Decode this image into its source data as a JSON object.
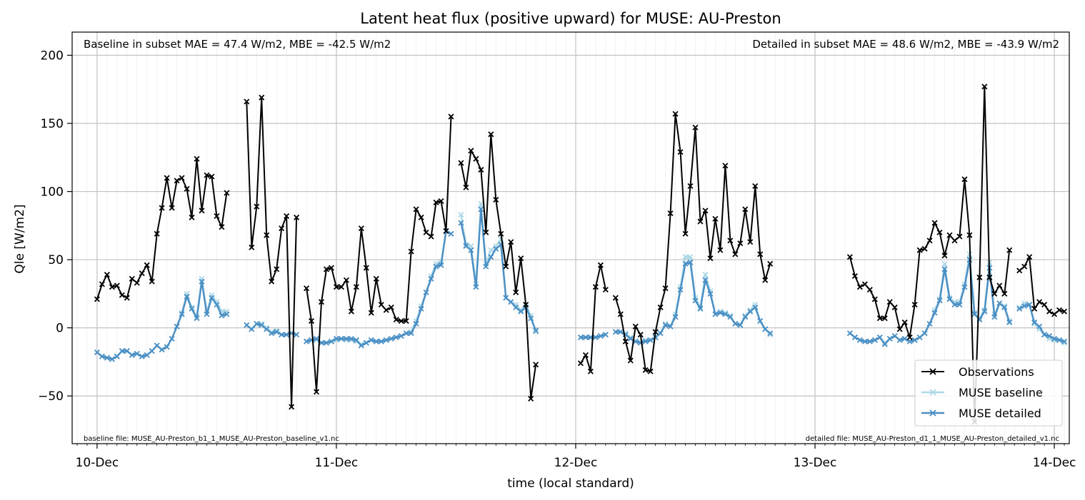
{
  "chart_data": {
    "type": "line",
    "title": "Latent heat flux (positive upward) for MUSE: AU-Preston",
    "xlabel": "time (local standard)",
    "ylabel": "Qle [W/m2]",
    "ylim": [
      -85,
      217
    ],
    "xlim": [
      "2013-12-09T21:30",
      "2013-12-14T01:30"
    ],
    "x_interval_minutes": 30,
    "x_start": "2013-12-10T00:00",
    "xticks": [
      {
        "value": "2013-12-10T00:00",
        "label": "10-Dec"
      },
      {
        "value": "2013-12-11T00:00",
        "label": "11-Dec"
      },
      {
        "value": "2013-12-12T00:00",
        "label": "12-Dec"
      },
      {
        "value": "2013-12-13T00:00",
        "label": "13-Dec"
      },
      {
        "value": "2013-12-14T00:00",
        "label": "14-Dec"
      }
    ],
    "yticks": [
      -50,
      0,
      50,
      100,
      150,
      200
    ],
    "grid": true,
    "legend_position": "bottom-right",
    "annotations": {
      "baseline_stats": "Baseline in subset MAE = 47.4 W/m2, MBE = -42.5 W/m2",
      "detailed_stats": "Detailed in subset MAE = 48.6 W/m2, MBE = -43.9 W/m2",
      "baseline_file": "baseline file: MUSE_AU-Preston_b1_1_MUSE_AU-Preston_baseline_v1.nc",
      "detailed_file": "detailed file: MUSE_AU-Preston_d1_1_MUSE_AU-Preston_detailed_v1.nc"
    },
    "series": [
      {
        "name": "Observations",
        "color": "#000000",
        "values": [
          21,
          32,
          39,
          30,
          31,
          24,
          22,
          36,
          33,
          40,
          46,
          34,
          69,
          88,
          110,
          88,
          108,
          110,
          102,
          81,
          124,
          86,
          112,
          111,
          82,
          74,
          99,
          null,
          null,
          null,
          166,
          59,
          89,
          169,
          68,
          34,
          43,
          73,
          82,
          -58,
          81,
          null,
          29,
          5,
          -47,
          19,
          43,
          44,
          30,
          30,
          35,
          12,
          30,
          73,
          44,
          11,
          36,
          17,
          13,
          15,
          6,
          5,
          5,
          56,
          87,
          81,
          70,
          67,
          92,
          93,
          71,
          155,
          null,
          121,
          103,
          130,
          124,
          116,
          70,
          142,
          94,
          69,
          45,
          63,
          26,
          51,
          17,
          -52,
          -27,
          null,
          null,
          null,
          null,
          null,
          null,
          null,
          null,
          -26,
          -20,
          -32,
          30,
          46,
          28,
          null,
          22,
          10,
          -10,
          -24,
          1,
          -5,
          -31,
          -32,
          -3,
          15,
          29,
          84,
          157,
          129,
          69,
          104,
          147,
          78,
          86,
          51,
          80,
          57,
          119,
          64,
          54,
          62,
          87,
          63,
          104,
          54,
          35,
          47,
          null,
          null,
          null,
          null,
          null,
          null,
          null,
          null,
          null,
          null,
          null,
          null,
          null,
          null,
          null,
          52,
          38,
          30,
          32,
          28,
          21,
          7,
          7,
          19,
          15,
          -1,
          4,
          -7,
          17,
          57,
          58,
          64,
          77,
          70,
          53,
          68,
          64,
          67,
          109,
          68,
          -69,
          37,
          177,
          37,
          25,
          31,
          25,
          57,
          null,
          42,
          45,
          52,
          14,
          19,
          17,
          12,
          10,
          13,
          12
        ]
      },
      {
        "name": "MUSE baseline",
        "color": "#add8e6",
        "values": [
          -18,
          -21,
          -22,
          -23,
          -21,
          -17,
          -17,
          -20,
          -19,
          -21,
          -20,
          -17,
          -13,
          -16,
          -14,
          -8,
          1,
          11,
          25,
          15,
          8,
          36,
          12,
          24,
          19,
          12,
          12,
          null,
          null,
          null,
          2,
          -1,
          3,
          3,
          0,
          -3,
          -2,
          -5,
          -5,
          -4,
          -5,
          null,
          -10,
          -9,
          -9,
          -11,
          -11,
          -10,
          -9,
          -8,
          -9,
          -9,
          -10,
          -12,
          -11,
          -9,
          -10,
          -10,
          -9,
          -8,
          -7,
          -6,
          -4,
          -3,
          5,
          16,
          26,
          38,
          47,
          48,
          71,
          69,
          null,
          83,
          61,
          60,
          32,
          91,
          47,
          57,
          60,
          65,
          22,
          19,
          17,
          13,
          17,
          9,
          -3,
          null,
          null,
          null,
          null,
          null,
          null,
          null,
          null,
          -7,
          -7,
          -7,
          -7,
          -6,
          -5,
          null,
          -3,
          -3,
          -4,
          -7,
          -10,
          -11,
          -9,
          -9,
          -7,
          -4,
          3,
          1,
          10,
          30,
          52,
          52,
          22,
          15,
          39,
          27,
          10,
          12,
          11,
          9,
          3,
          2,
          9,
          13,
          17,
          5,
          -1,
          -5,
          null,
          null,
          null,
          null,
          null,
          null,
          null,
          null,
          null,
          null,
          null,
          null,
          null,
          null,
          null,
          -4,
          -7,
          -9,
          -10,
          -10,
          -9,
          -7,
          -11,
          -8,
          -6,
          -9,
          -8,
          -10,
          -9,
          -7,
          -4,
          3,
          13,
          21,
          47,
          22,
          19,
          19,
          32,
          54,
          11,
          7,
          13,
          48,
          10,
          18,
          16,
          5,
          null,
          15,
          18,
          17,
          3,
          -1,
          -5,
          -8,
          -9,
          -9,
          -11
        ]
      },
      {
        "name": "MUSE detailed",
        "color": "#4a8fc4",
        "values": [
          -18,
          -21,
          -22,
          -23,
          -21,
          -17,
          -17,
          -20,
          -19,
          -21,
          -20,
          -17,
          -13,
          -16,
          -14,
          -8,
          1,
          10,
          23,
          14,
          7,
          34,
          10,
          22,
          17,
          9,
          10,
          null,
          null,
          null,
          2,
          -1,
          3,
          2,
          -1,
          -4,
          -3,
          -5,
          -5,
          -4,
          -5,
          null,
          -10,
          -9,
          -8,
          -11,
          -11,
          -10,
          -8,
          -8,
          -8,
          -8,
          -9,
          -13,
          -11,
          -9,
          -10,
          -10,
          -9,
          -8,
          -7,
          -6,
          -4,
          -4,
          3,
          14,
          26,
          36,
          45,
          46,
          71,
          69,
          null,
          77,
          60,
          57,
          30,
          87,
          45,
          52,
          58,
          61,
          22,
          19,
          15,
          12,
          15,
          7,
          -2,
          null,
          null,
          null,
          null,
          null,
          null,
          null,
          null,
          -7,
          -7,
          -7,
          -7,
          -6,
          -5,
          null,
          -3,
          -3,
          -5,
          -8,
          -10,
          -11,
          -10,
          -9,
          -7,
          -4,
          2,
          1,
          8,
          28,
          47,
          48,
          20,
          14,
          35,
          25,
          10,
          11,
          10,
          8,
          3,
          2,
          8,
          12,
          15,
          5,
          -1,
          -4,
          null,
          null,
          null,
          null,
          null,
          null,
          null,
          null,
          null,
          null,
          null,
          null,
          null,
          null,
          null,
          -4,
          -7,
          -9,
          -10,
          -10,
          -9,
          -7,
          -12,
          -8,
          -6,
          -9,
          -8,
          -10,
          -9,
          -7,
          -4,
          3,
          11,
          20,
          43,
          21,
          17,
          17,
          30,
          50,
          10,
          6,
          12,
          44,
          8,
          18,
          15,
          4,
          null,
          14,
          16,
          17,
          4,
          1,
          -5,
          -6,
          -8,
          -9,
          -10
        ]
      }
    ]
  }
}
